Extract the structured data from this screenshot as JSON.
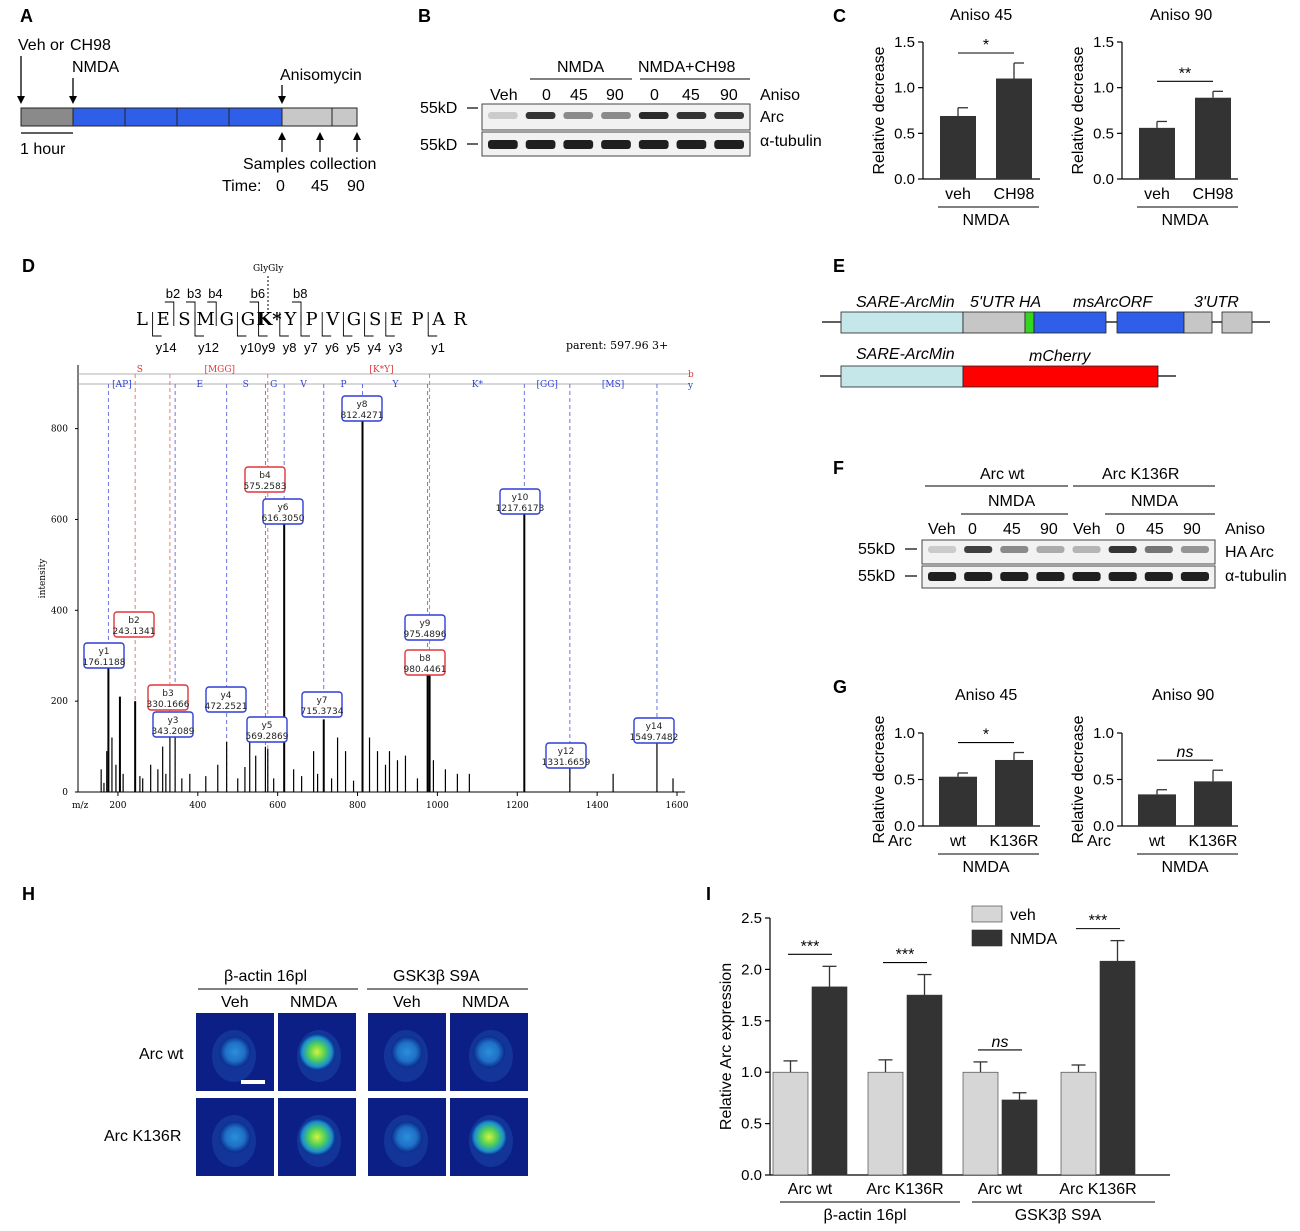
{
  "panel_letters": {
    "A": "A",
    "B": "B",
    "C": "C",
    "D": "D",
    "E": "E",
    "F": "F",
    "G": "G",
    "H": "H",
    "I": "I"
  },
  "panelA": {
    "veh_label": "Veh or",
    "ch98_label": "CH98",
    "nmda_label": "NMDA",
    "aniso_label": "Anisomycin",
    "hour_label": "1 hour",
    "samples_label": "Samples collection",
    "time_label": "Time:",
    "times": [
      "0",
      "45",
      "90"
    ],
    "colors": {
      "grey_dark": "#8a8a8a",
      "blue": "#2f5fe8",
      "grey_light": "#c8c8c8"
    }
  },
  "panelB": {
    "veh": "Veh",
    "nmda": "NMDA",
    "nmda_ch98": "NMDA+CH98",
    "lanes": [
      "0",
      "45",
      "90",
      "0",
      "45",
      "90"
    ],
    "aniso": "Aniso",
    "row1_marker": "55kD",
    "row1_label": "Arc",
    "row2_marker": "55kD",
    "row2_label": "α-tubulin",
    "band_intensity_arc": [
      0.15,
      0.85,
      0.45,
      0.45,
      0.9,
      0.85,
      0.85
    ],
    "band_intensity_tub": [
      0.95,
      0.95,
      0.95,
      0.95,
      0.95,
      0.95,
      0.95
    ]
  },
  "panelE": {
    "c1_promoter": "SARE-ArcMin",
    "c1_utr5": "5'UTR",
    "c1_ha": "HA",
    "c1_orf": "msArcORF",
    "c1_utr3": "3'UTR",
    "c2_promoter": "SARE-ArcMin",
    "c2_cherry": "mCherry",
    "colors": {
      "promoter": "#c5e7ea",
      "utr": "#c6c6c6",
      "ha": "#35d41f",
      "orf": "#2f5fe8",
      "cherry": "#ff0000"
    }
  },
  "panelF": {
    "arc_wt": "Arc wt",
    "arc_k136r": "Arc K136R",
    "nmda1": "NMDA",
    "nmda2": "NMDA",
    "lanes": [
      "Veh",
      "0",
      "45",
      "90",
      "Veh",
      "0",
      "45",
      "90"
    ],
    "aniso": "Aniso",
    "row1_marker": "55kD",
    "row1_label": "HA Arc",
    "row2_marker": "55kD",
    "row2_label": "α-tubulin",
    "band_intensity_arc": [
      0.15,
      0.8,
      0.45,
      0.3,
      0.25,
      0.85,
      0.55,
      0.4
    ],
    "band_intensity_tub": [
      0.95,
      0.95,
      0.95,
      0.95,
      0.95,
      0.95,
      0.95,
      0.95
    ]
  },
  "panelH": {
    "group1": "β-actin 16pl",
    "group2": "GSK3β S9A",
    "cols": [
      "Veh",
      "NMDA",
      "Veh",
      "NMDA"
    ],
    "rows": [
      "Arc wt",
      "Arc K136R"
    ],
    "intensity": [
      [
        0.2,
        0.85,
        0.2,
        0.25
      ],
      [
        0.2,
        0.9,
        0.2,
        0.8
      ]
    ]
  },
  "chart_data": [
    {
      "id": "C1",
      "type": "bar",
      "title": "Aniso 45",
      "ylabel": "Relative decrease",
      "ylim": [
        0,
        1.5
      ],
      "yticks": [
        0.0,
        0.5,
        1.0,
        1.5
      ],
      "categories": [
        "veh",
        "CH98"
      ],
      "group_label": "NMDA",
      "values": [
        0.69,
        1.1
      ],
      "errors": [
        0.09,
        0.17
      ],
      "significance": "*",
      "colors": [
        "#333333",
        "#333333"
      ]
    },
    {
      "id": "C2",
      "type": "bar",
      "title": "Aniso 90",
      "ylabel": "Relative decrease",
      "ylim": [
        0,
        1.5
      ],
      "yticks": [
        0.0,
        0.5,
        1.0,
        1.5
      ],
      "categories": [
        "veh",
        "CH98"
      ],
      "group_label": "NMDA",
      "values": [
        0.56,
        0.89
      ],
      "errors": [
        0.07,
        0.07
      ],
      "significance": "**",
      "colors": [
        "#333333",
        "#333333"
      ]
    },
    {
      "id": "G1",
      "type": "bar",
      "title": "Aniso 45",
      "ylabel": "Relative decrease",
      "ylim": [
        0,
        1.0
      ],
      "yticks": [
        0.0,
        0.5,
        1.0
      ],
      "row_label": "Arc",
      "categories": [
        "wt",
        "K136R"
      ],
      "group_label": "NMDA",
      "values": [
        0.53,
        0.71
      ],
      "errors": [
        0.04,
        0.08
      ],
      "significance": "*",
      "colors": [
        "#333333",
        "#333333"
      ]
    },
    {
      "id": "G2",
      "type": "bar",
      "title": "Aniso  90",
      "ylabel": "Relative decrease",
      "ylim": [
        0,
        1.0
      ],
      "yticks": [
        0.0,
        0.5,
        1.0
      ],
      "row_label": "Arc",
      "categories": [
        "wt",
        "K136R"
      ],
      "group_label": "NMDA",
      "values": [
        0.34,
        0.48
      ],
      "errors": [
        0.05,
        0.12
      ],
      "significance": "ns",
      "colors": [
        "#333333",
        "#333333"
      ]
    },
    {
      "id": "D",
      "type": "bar",
      "xlabel": "m/z",
      "ylabel": "intensity",
      "xlim": [
        100,
        1620
      ],
      "ylim": [
        0,
        940
      ],
      "xticks": [
        200,
        400,
        600,
        800,
        1000,
        1200,
        1400,
        1600
      ],
      "yticks": [
        0,
        200,
        400,
        600,
        800
      ],
      "peptide": [
        "L",
        "E",
        "S",
        "M",
        "G",
        "G",
        "K*",
        "Y",
        "P",
        "V",
        "G",
        "S",
        "E",
        "P",
        "A",
        "R"
      ],
      "b_ions": [
        "b2",
        "b3",
        "b4",
        "b6",
        "b8"
      ],
      "y_ions": [
        "y14",
        "y12",
        "y10",
        "y9",
        "y8",
        "y7",
        "y6",
        "y5",
        "y4",
        "y3",
        "y1"
      ],
      "modification": "GlyGly",
      "parent": "parent: 597.96  3+",
      "series_b_label": "b",
      "series_y_label": "y",
      "b_track": [
        "S",
        "[MGG]",
        "[K*Y]"
      ],
      "y_track": [
        "[AP]",
        "E",
        "S",
        "G",
        "V",
        "P",
        "Y",
        "K*",
        "[GG]",
        "[MS]"
      ],
      "peaks": {
        "mz": [
          158,
          165,
          172,
          176.1188,
          185,
          195,
          205,
          213,
          243.1341,
          255,
          262,
          282,
          300,
          312,
          320,
          330.1666,
          343.2089,
          360,
          380,
          420,
          450,
          472.2521,
          500,
          518,
          530,
          545,
          569.2869,
          575.2583,
          590,
          616.305,
          640,
          660,
          690,
          700,
          715.3734,
          735,
          750,
          770,
          790,
          812.4271,
          830,
          850,
          870,
          880,
          900,
          920,
          950,
          975.4896,
          980.4461,
          990,
          1020,
          1050,
          1080,
          1217.6173,
          1331.6659,
          1440,
          1549.7482,
          1590
        ],
        "intensity": [
          50,
          20,
          90,
          280,
          120,
          60,
          210,
          40,
          200,
          35,
          30,
          60,
          50,
          100,
          40,
          140,
          120,
          30,
          40,
          35,
          60,
          110,
          30,
          55,
          110,
          80,
          100,
          95,
          30,
          610,
          50,
          35,
          90,
          40,
          160,
          30,
          120,
          90,
          25,
          840,
          120,
          90,
          60,
          90,
          70,
          80,
          30,
          260,
          260,
          70,
          50,
          40,
          40,
          630,
          55,
          40,
          110,
          30
        ]
      },
      "labeled_peaks": [
        {
          "ion": "y1",
          "mz": "176.1188",
          "series": "y"
        },
        {
          "ion": "b2",
          "mz": "243.1341",
          "series": "b"
        },
        {
          "ion": "b3",
          "mz": "330.1666",
          "series": "b"
        },
        {
          "ion": "y3",
          "mz": "343.2089",
          "series": "y"
        },
        {
          "ion": "y4",
          "mz": "472.2521",
          "series": "y"
        },
        {
          "ion": "y5",
          "mz": "569.2869",
          "series": "y"
        },
        {
          "ion": "b4",
          "mz": "575.2583",
          "series": "b"
        },
        {
          "ion": "y6",
          "mz": "616.3050",
          "series": "y"
        },
        {
          "ion": "y7",
          "mz": "715.3734",
          "series": "y"
        },
        {
          "ion": "y8",
          "mz": "812.4271",
          "series": "y"
        },
        {
          "ion": "y9",
          "mz": "975.4896",
          "series": "y"
        },
        {
          "ion": "b8",
          "mz": "980.4461",
          "series": "b"
        },
        {
          "ion": "y10",
          "mz": "1217.6173",
          "series": "y"
        },
        {
          "ion": "y12",
          "mz": "1331.6659",
          "series": "y"
        },
        {
          "ion": "y14",
          "mz": "1549.7482",
          "series": "y"
        }
      ]
    },
    {
      "id": "I",
      "type": "bar",
      "ylabel": "Relative Arc expression",
      "ylim": [
        0,
        2.5
      ],
      "yticks": [
        0.0,
        0.5,
        1.0,
        1.5,
        2.0,
        2.5
      ],
      "categories": [
        "Arc wt",
        "Arc K136R",
        "Arc wt",
        "Arc K136R"
      ],
      "groups": [
        "β-actin 16pl",
        "GSK3β S9A"
      ],
      "series": [
        {
          "name": "veh",
          "values": [
            1.0,
            1.0,
            1.0,
            1.0
          ],
          "errors": [
            0.11,
            0.12,
            0.1,
            0.07
          ],
          "color": "#d6d6d6"
        },
        {
          "name": "NMDA",
          "values": [
            1.83,
            1.75,
            0.73,
            2.08
          ],
          "errors": [
            0.2,
            0.2,
            0.07,
            0.2
          ],
          "color": "#333333"
        }
      ],
      "significance": [
        "***",
        "***",
        "ns",
        "***"
      ]
    }
  ]
}
